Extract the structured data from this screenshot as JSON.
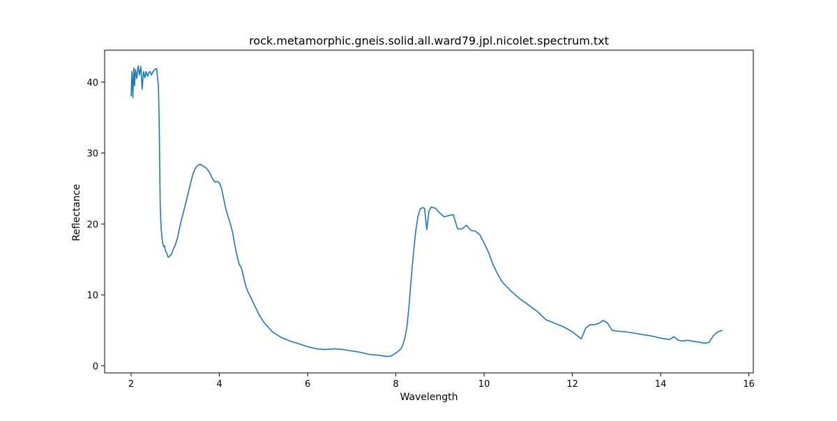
{
  "chart_data": {
    "type": "line",
    "title": "rock.metamorphic.gneis.solid.all.ward79.jpl.nicolet.spectrum.txt",
    "xlabel": "Wavelength",
    "ylabel": "Reflectance",
    "xlim": [
      1.4,
      16.1
    ],
    "ylim": [
      -1.0,
      44.5
    ],
    "xticks": [
      2,
      4,
      6,
      8,
      10,
      12,
      14,
      16
    ],
    "yticks": [
      0,
      10,
      20,
      30,
      40
    ],
    "grid": false,
    "legend": "none",
    "series": [
      {
        "color": "#1f77b4",
        "x": [
          2.0,
          2.02,
          2.04,
          2.06,
          2.08,
          2.1,
          2.13,
          2.16,
          2.19,
          2.22,
          2.25,
          2.28,
          2.31,
          2.34,
          2.37,
          2.4,
          2.43,
          2.46,
          2.5,
          2.54,
          2.58,
          2.6,
          2.62,
          2.64,
          2.66,
          2.68,
          2.7,
          2.72,
          2.74,
          2.76,
          2.78,
          2.8,
          2.84,
          2.88,
          2.92,
          2.96,
          3.0,
          3.05,
          3.1,
          3.15,
          3.2,
          3.25,
          3.3,
          3.35,
          3.4,
          3.45,
          3.5,
          3.55,
          3.6,
          3.65,
          3.7,
          3.75,
          3.8,
          3.85,
          3.9,
          3.95,
          4.0,
          4.05,
          4.1,
          4.15,
          4.2,
          4.25,
          4.3,
          4.35,
          4.4,
          4.45,
          4.5,
          4.55,
          4.6,
          4.65,
          4.7,
          4.8,
          4.9,
          5.0,
          5.2,
          5.4,
          5.6,
          5.8,
          6.0,
          6.2,
          6.4,
          6.6,
          6.8,
          7.0,
          7.2,
          7.4,
          7.6,
          7.8,
          7.9,
          8.0,
          8.1,
          8.15,
          8.2,
          8.25,
          8.3,
          8.35,
          8.4,
          8.45,
          8.5,
          8.55,
          8.6,
          8.65,
          8.7,
          8.75,
          8.8,
          8.9,
          9.0,
          9.1,
          9.2,
          9.3,
          9.35,
          9.4,
          9.5,
          9.6,
          9.7,
          9.8,
          9.9,
          10.0,
          10.1,
          10.2,
          10.3,
          10.4,
          10.6,
          10.8,
          11.0,
          11.2,
          11.4,
          11.6,
          11.8,
          12.0,
          12.1,
          12.2,
          12.3,
          12.4,
          12.5,
          12.6,
          12.7,
          12.8,
          12.9,
          13.0,
          13.2,
          13.4,
          13.6,
          13.8,
          14.0,
          14.2,
          14.3,
          14.4,
          14.5,
          14.6,
          14.8,
          15.0,
          15.1,
          15.2,
          15.3,
          15.4
        ],
        "y": [
          38.0,
          41.5,
          37.8,
          42.0,
          39.5,
          41.8,
          40.5,
          42.3,
          41.0,
          42.2,
          39.0,
          41.5,
          40.6,
          41.5,
          40.8,
          41.3,
          41.5,
          41.0,
          41.5,
          41.8,
          41.9,
          40.5,
          39.5,
          33.0,
          22.5,
          19.5,
          18.0,
          17.2,
          16.8,
          16.9,
          16.2,
          16.0,
          15.3,
          15.5,
          15.8,
          16.5,
          17.0,
          18.0,
          19.5,
          20.8,
          22.0,
          23.2,
          24.5,
          25.8,
          27.0,
          27.8,
          28.2,
          28.4,
          28.3,
          28.1,
          27.9,
          27.5,
          27.0,
          26.3,
          25.9,
          26.0,
          25.8,
          25.0,
          23.5,
          22.0,
          21.0,
          20.0,
          18.8,
          17.0,
          15.5,
          14.3,
          13.8,
          12.5,
          11.2,
          10.4,
          9.8,
          8.5,
          7.2,
          6.2,
          4.8,
          4.0,
          3.5,
          3.1,
          2.7,
          2.4,
          2.3,
          2.4,
          2.3,
          2.1,
          1.9,
          1.6,
          1.5,
          1.3,
          1.4,
          1.8,
          2.3,
          2.8,
          3.8,
          5.5,
          8.5,
          12.5,
          16.0,
          19.0,
          21.0,
          22.1,
          22.3,
          22.2,
          19.2,
          21.8,
          22.4,
          22.2,
          21.5,
          21.0,
          21.2,
          21.3,
          20.3,
          19.3,
          19.3,
          19.8,
          19.1,
          19.0,
          18.5,
          17.3,
          16.0,
          14.3,
          13.0,
          11.9,
          10.6,
          9.5,
          8.6,
          7.7,
          6.5,
          6.0,
          5.5,
          4.8,
          4.3,
          3.8,
          5.3,
          5.8,
          5.8,
          6.0,
          6.4,
          6.0,
          5.0,
          4.9,
          4.8,
          4.6,
          4.4,
          4.2,
          3.9,
          3.7,
          4.1,
          3.6,
          3.5,
          3.6,
          3.4,
          3.2,
          3.3,
          4.3,
          4.8,
          5.0
        ]
      }
    ]
  }
}
